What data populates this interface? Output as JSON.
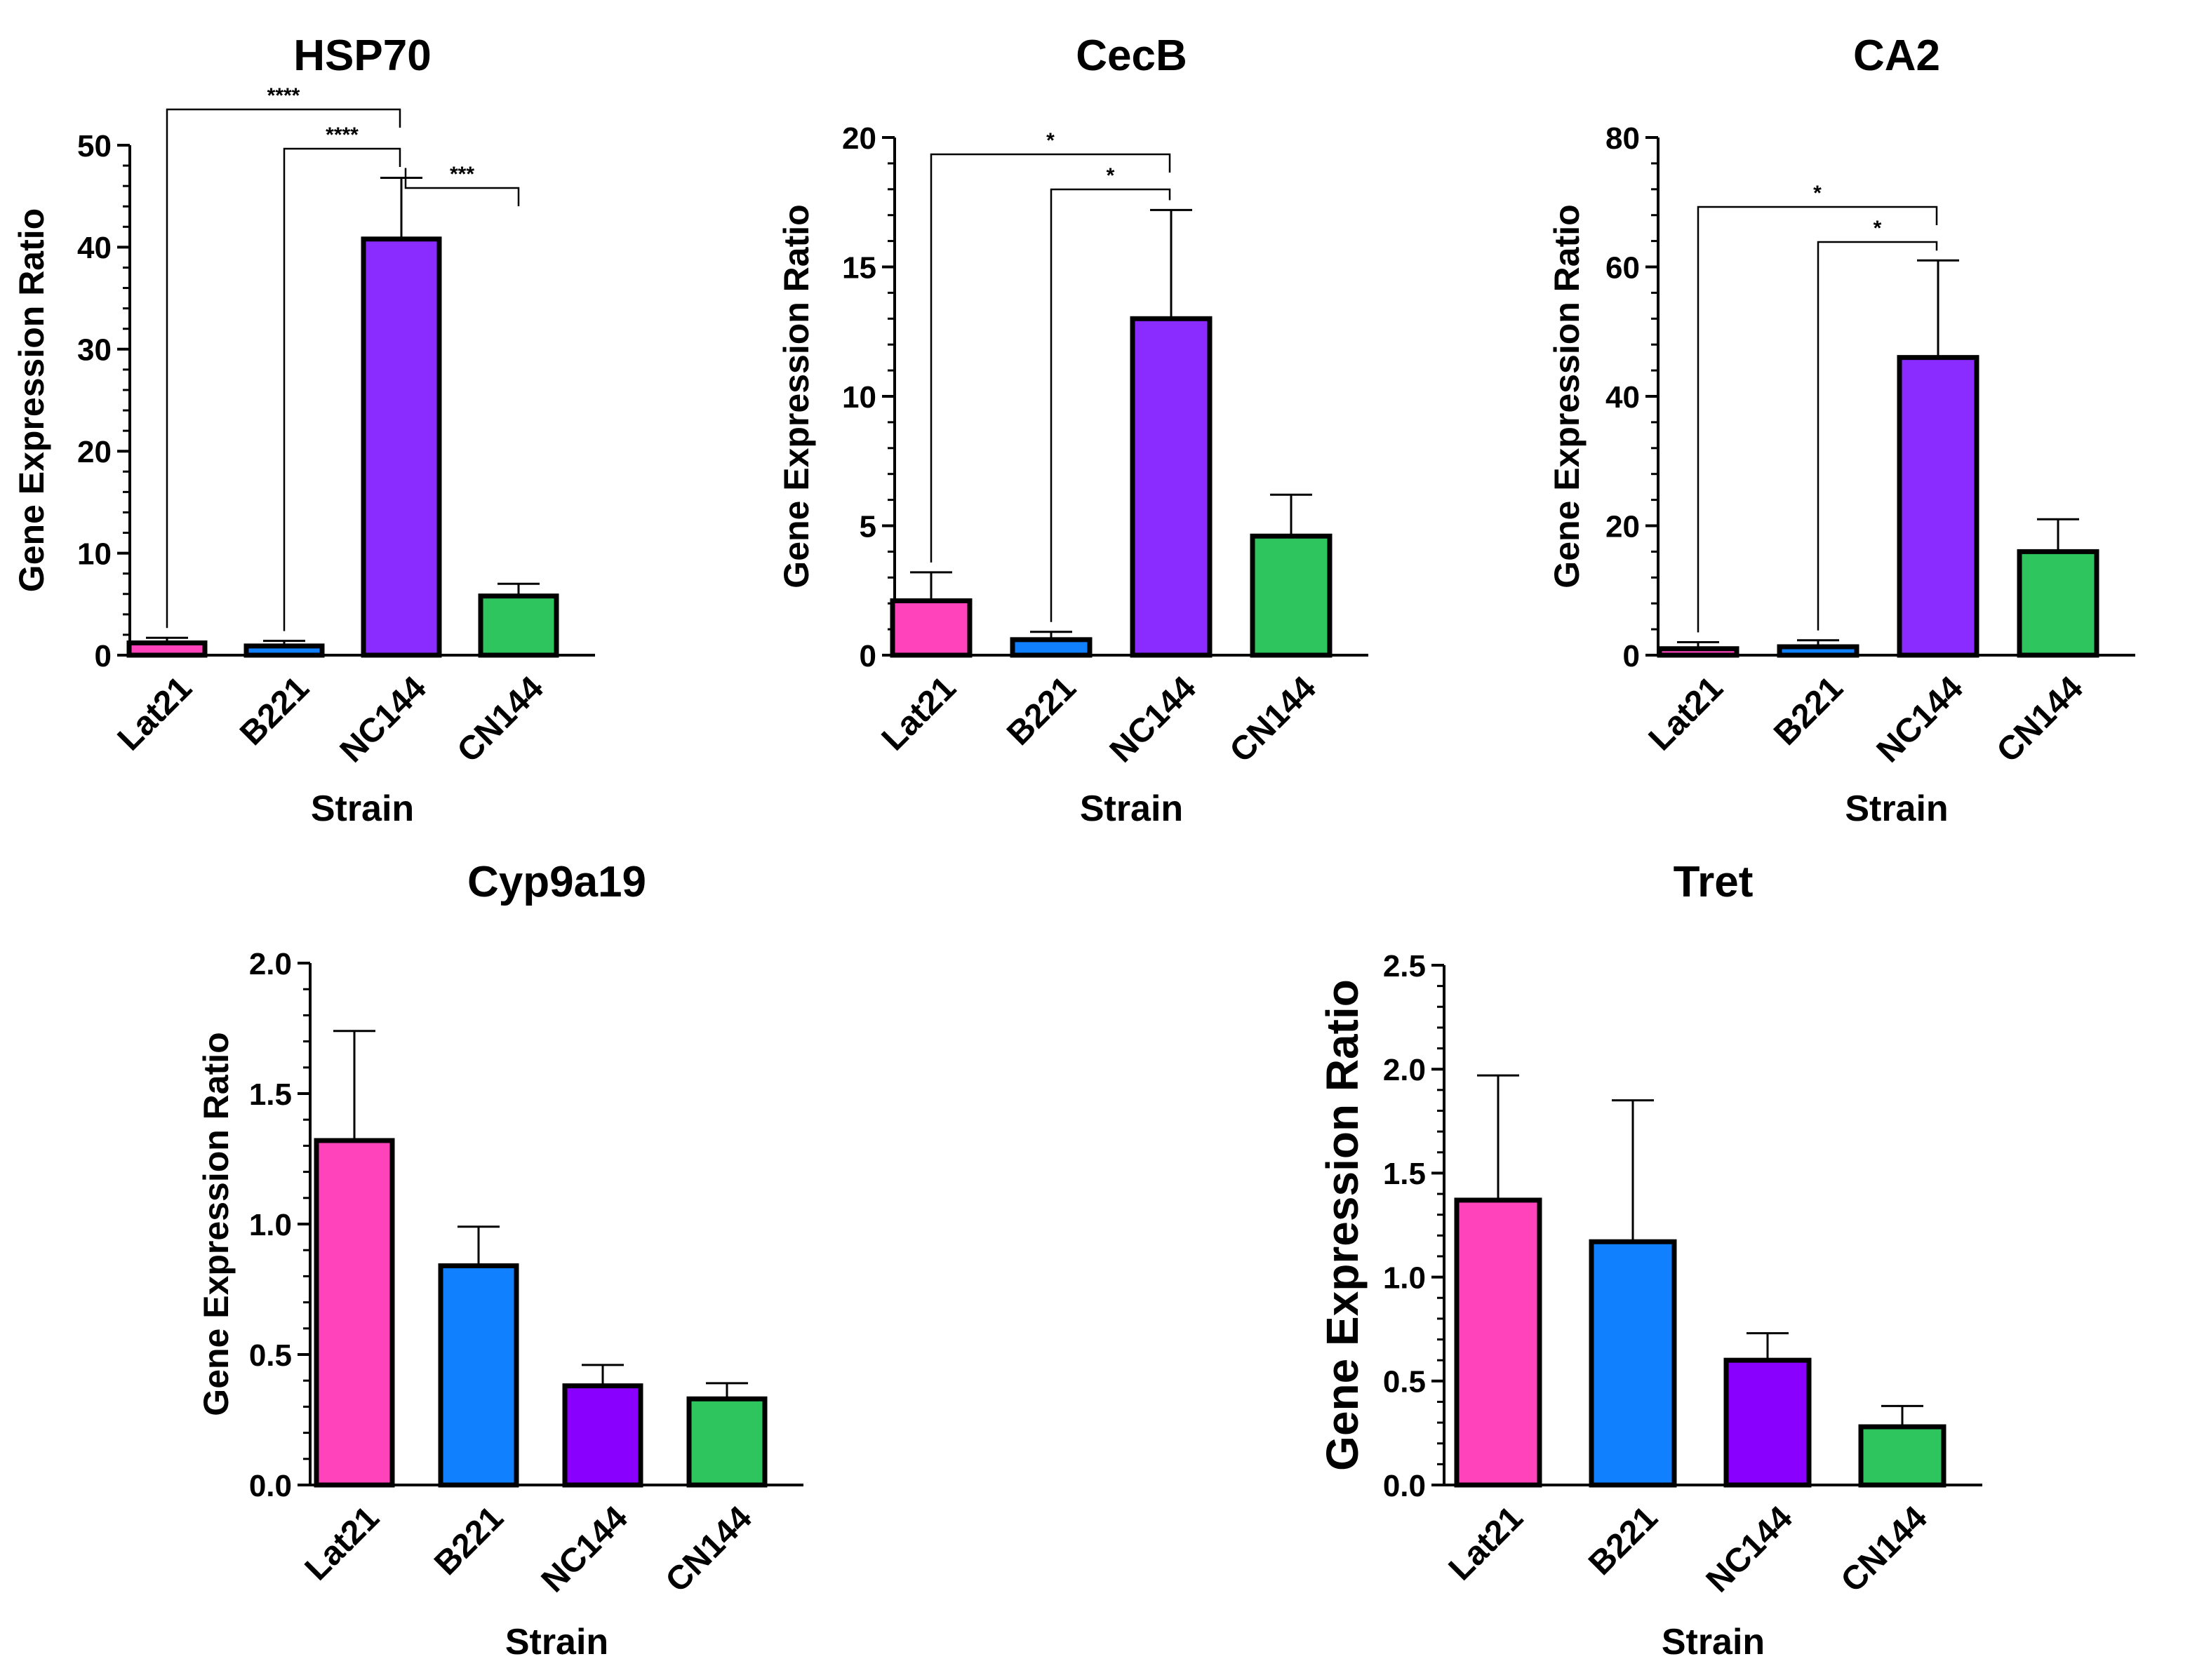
{
  "chart_data": [
    {
      "id": "hsp70",
      "type": "bar",
      "title": "HSP70",
      "xlabel": "Strain",
      "ylabel": "Gene Expression Ratio",
      "categories": [
        "Lat21",
        "B221",
        "NC144",
        "CN144"
      ],
      "values": [
        1.2,
        0.9,
        40.8,
        5.8
      ],
      "errors": [
        0.5,
        0.5,
        6.0,
        1.2
      ],
      "colors": [
        "#FF44BB",
        "#1180FF",
        "#8A2BFF",
        "#2EC45E"
      ],
      "ylim": [
        0,
        50
      ],
      "yticks": [
        0,
        10,
        20,
        30,
        40,
        50
      ],
      "ytick_labels": [
        "0",
        "10",
        "20",
        "30",
        "40",
        "50"
      ],
      "minor_ticks": 4,
      "significance": [
        {
          "from": 0,
          "to": 2,
          "label": "****"
        },
        {
          "from": 1,
          "to": 2,
          "label": "****"
        },
        {
          "from": 2,
          "to": 3,
          "label": "***"
        }
      ]
    },
    {
      "id": "cecb",
      "type": "bar",
      "title": "CecB",
      "xlabel": "Strain",
      "ylabel": "Gene Expression Ratio",
      "categories": [
        "Lat21",
        "B221",
        "NC144",
        "CN144"
      ],
      "values": [
        2.1,
        0.6,
        13.0,
        4.6
      ],
      "errors": [
        1.1,
        0.3,
        4.2,
        1.6
      ],
      "colors": [
        "#FF44BB",
        "#1180FF",
        "#8A2BFF",
        "#2EC45E"
      ],
      "ylim": [
        0,
        20
      ],
      "yticks": [
        0,
        5,
        10,
        15,
        20
      ],
      "ytick_labels": [
        "0",
        "5",
        "10",
        "15",
        "20"
      ],
      "minor_ticks": 4,
      "significance": [
        {
          "from": 0,
          "to": 2,
          "label": "*"
        },
        {
          "from": 1,
          "to": 2,
          "label": "*"
        }
      ]
    },
    {
      "id": "ca2",
      "type": "bar",
      "title": "CA2",
      "xlabel": "Strain",
      "ylabel": "Gene Expression Ratio",
      "categories": [
        "Lat21",
        "B221",
        "NC144",
        "CN144"
      ],
      "values": [
        1.0,
        1.3,
        46.0,
        16.0
      ],
      "errors": [
        1.0,
        1.0,
        15.0,
        5.0
      ],
      "colors": [
        "#FF44BB",
        "#1180FF",
        "#8A2BFF",
        "#2EC45E"
      ],
      "ylim": [
        0,
        80
      ],
      "yticks": [
        0,
        20,
        40,
        60,
        80
      ],
      "ytick_labels": [
        "0",
        "20",
        "40",
        "60",
        "80"
      ],
      "minor_ticks": 4,
      "significance": [
        {
          "from": 0,
          "to": 2,
          "label": "*"
        },
        {
          "from": 1,
          "to": 2,
          "label": "*"
        }
      ]
    },
    {
      "id": "cyp9a19",
      "type": "bar",
      "title": "Cyp9a19",
      "xlabel": "Strain",
      "ylabel": "Gene Expression Ratio",
      "categories": [
        "Lat21",
        "B221",
        "NC144",
        "CN144"
      ],
      "values": [
        1.32,
        0.84,
        0.38,
        0.33
      ],
      "errors": [
        0.42,
        0.15,
        0.08,
        0.06
      ],
      "colors": [
        "#FF44BB",
        "#1180FF",
        "#8A00FF",
        "#2EC45E"
      ],
      "ylim": [
        0,
        2.0
      ],
      "yticks": [
        0,
        0.5,
        1.0,
        1.5,
        2.0
      ],
      "ytick_labels": [
        "0.0",
        "0.5",
        "1.0",
        "1.5",
        "2.0"
      ],
      "minor_ticks": 4,
      "significance": []
    },
    {
      "id": "tret",
      "type": "bar",
      "title": "Tret",
      "xlabel": "Strain",
      "ylabel": "Gene Expression Ratio",
      "categories": [
        "Lat21",
        "B221",
        "NC144",
        "CN144"
      ],
      "values": [
        1.37,
        1.17,
        0.6,
        0.28
      ],
      "errors": [
        0.6,
        0.68,
        0.13,
        0.1
      ],
      "colors": [
        "#FF44BB",
        "#1180FF",
        "#8A00FF",
        "#2EC45E"
      ],
      "ylim": [
        0,
        2.5
      ],
      "yticks": [
        0,
        0.5,
        1.0,
        1.5,
        2.0,
        2.5
      ],
      "ytick_labels": [
        "0.0",
        "0.5",
        "1.0",
        "1.5",
        "2.0",
        "2.5"
      ],
      "minor_ticks": 4,
      "significance": []
    }
  ]
}
